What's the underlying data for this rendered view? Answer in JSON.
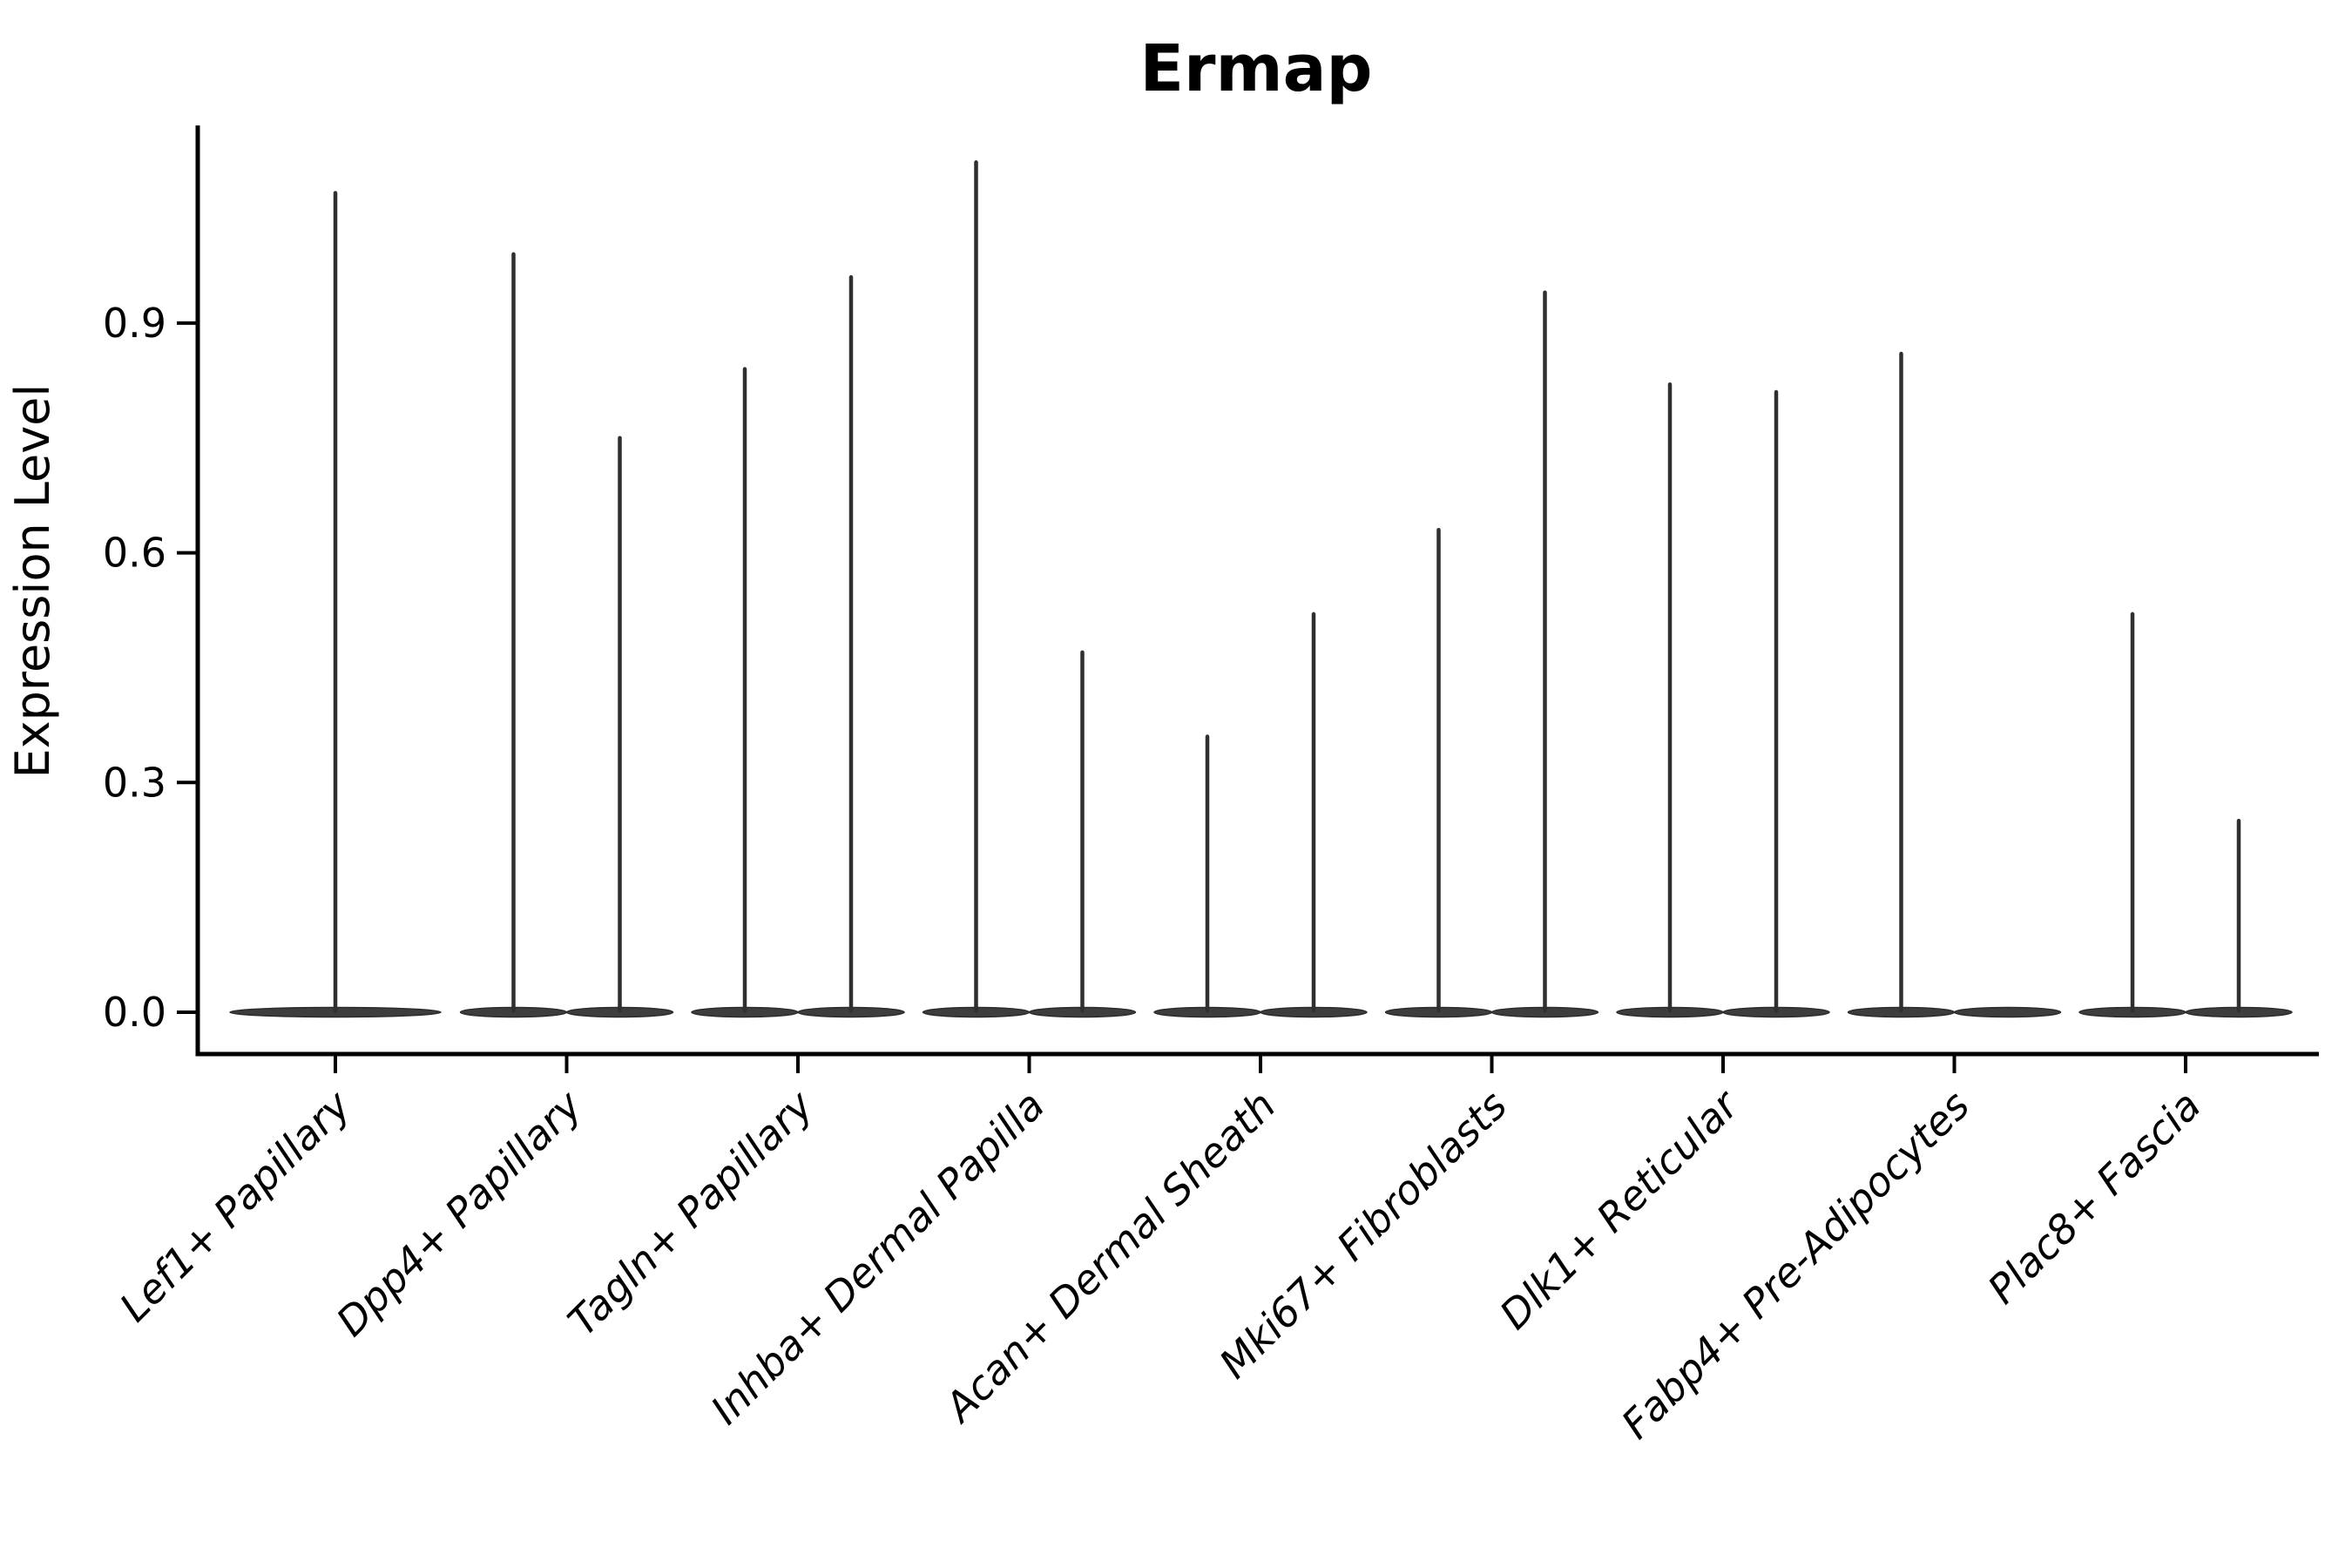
{
  "chart_data": {
    "type": "violin",
    "title": "Ermap",
    "ylabel": "Expression Level",
    "xlabel": "",
    "categories": [
      "Lef1+ Papillary",
      "Dpp4+ Papillary",
      "Tagln+ Papillary",
      "Inhba+ Dermal Papilla",
      "Acan+ Dermal Sheath",
      "Mki67+ Fibroblasts",
      "Dlk1+ Reticular",
      "Fabp4+ Pre-Adipocytes",
      "Plac8+ Fascia"
    ],
    "yticks": [
      0.0,
      0.3,
      0.6,
      0.9
    ],
    "ytick_labels": [
      "0.0",
      "0.3",
      "0.6",
      "0.9"
    ],
    "ylim": [
      -0.05,
      1.16
    ],
    "grid": false,
    "legend_position": "none",
    "series": [
      {
        "category": "Lef1+ Papillary",
        "violin_max": [
          1.07
        ]
      },
      {
        "category": "Dpp4+ Papillary",
        "violin_max": [
          0.99,
          0.75
        ]
      },
      {
        "category": "Tagln+ Papillary",
        "violin_max": [
          0.84,
          0.96
        ]
      },
      {
        "category": "Inhba+ Dermal Papilla",
        "violin_max": [
          1.11,
          0.47
        ]
      },
      {
        "category": "Acan+ Dermal Sheath",
        "violin_max": [
          0.36,
          0.52
        ]
      },
      {
        "category": "Mki67+ Fibroblasts",
        "violin_max": [
          0.63,
          0.94
        ]
      },
      {
        "category": "Dlk1+ Reticular",
        "violin_max": [
          0.82,
          0.81
        ]
      },
      {
        "category": "Fabp4+ Pre-Adipocytes",
        "violin_max": [
          0.86,
          null
        ]
      },
      {
        "category": "Plac8+ Fascia",
        "violin_max": [
          0.52,
          0.25
        ]
      }
    ],
    "colors": {
      "violin_fill": "#3d3d3d",
      "violin_edge": "#2c2c2c",
      "spike": "#2f2f2f",
      "axis": "#000000",
      "text": "#000000",
      "background": "#ffffff"
    }
  }
}
